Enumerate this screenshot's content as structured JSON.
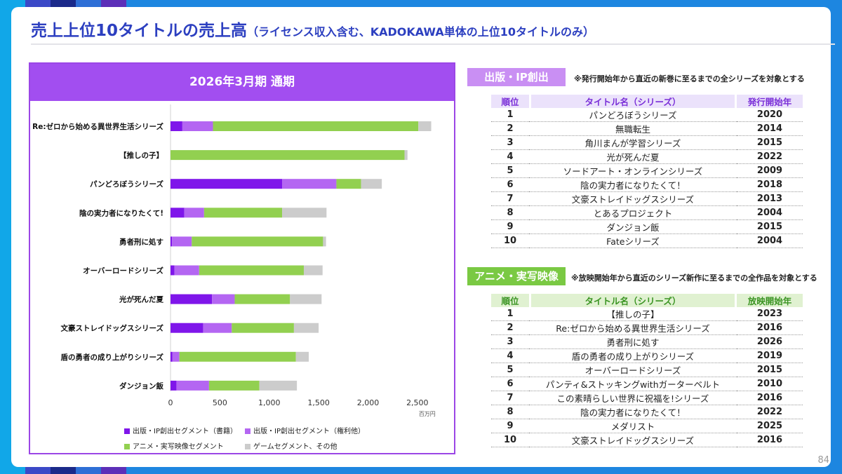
{
  "page": {
    "title_main": "売上上位10タイトルの売上高",
    "title_sub": "（ライセンス収入含む、KADOKAWA単体の上位10タイトルのみ）",
    "page_number": "84"
  },
  "chart_header": "2026年3月期 通期",
  "chart_data": {
    "type": "bar",
    "orientation": "horizontal",
    "stacked": true,
    "categories": [
      "Re:ゼロから始める異世界生活シリーズ",
      "【推しの子】",
      "パンどろぼうシリーズ",
      "陰の実力者になりたくて!",
      "勇者刑に処す",
      "オーバーロードシリーズ",
      "光が死んだ夏",
      "文豪ストレイドッグスシリーズ",
      "盾の勇者の成り上がりシリーズ",
      "ダンジョン飯"
    ],
    "series": [
      {
        "name": "出版・IP創出セグメント（書籍）",
        "color": "#7f16ea",
        "values": [
          120,
          0,
          1130,
          140,
          15,
          40,
          420,
          330,
          20,
          60
        ]
      },
      {
        "name": "出版・IP創出セグメント（権利他）",
        "color": "#b466f2",
        "values": [
          310,
          0,
          550,
          200,
          200,
          250,
          230,
          290,
          70,
          330
        ]
      },
      {
        "name": "アニメ・実写映像セグメント",
        "color": "#92d050",
        "values": [
          2080,
          2370,
          250,
          790,
          1330,
          1060,
          560,
          630,
          1180,
          510
        ]
      },
      {
        "name": "ゲームセグメント、その他",
        "color": "#cccccc",
        "values": [
          130,
          30,
          210,
          450,
          30,
          190,
          320,
          250,
          130,
          380
        ]
      }
    ],
    "xlim": [
      0,
      2750
    ],
    "xticks": [
      0,
      500,
      1000,
      1500,
      2000,
      2500
    ],
    "xtick_labels": [
      "0",
      "500",
      "1,000",
      "1,500",
      "2,000",
      "2,500"
    ],
    "unit": "百万円",
    "grid": false,
    "legend_position": "bottom"
  },
  "publishing": {
    "label": "出版・IP創出",
    "note": "※発行開始年から直近の新巻に至るまでの全シリーズを対象とする",
    "headers": [
      "順位",
      "タイトル名（シリーズ）",
      "発行開始年"
    ],
    "rows": [
      {
        "rank": "1",
        "title": "パンどろぼうシリーズ",
        "year": "2020"
      },
      {
        "rank": "2",
        "title": "無職転生",
        "year": "2014"
      },
      {
        "rank": "3",
        "title": "角川まんが学習シリーズ",
        "year": "2015"
      },
      {
        "rank": "4",
        "title": "光が死んだ夏",
        "year": "2022"
      },
      {
        "rank": "5",
        "title": "ソードアート・オンラインシリーズ",
        "year": "2009"
      },
      {
        "rank": "6",
        "title": "陰の実力者になりたくて！",
        "year": "2018"
      },
      {
        "rank": "7",
        "title": "文豪ストレイドッグスシリーズ",
        "year": "2013"
      },
      {
        "rank": "8",
        "title": "とあるプロジェクト",
        "year": "2004"
      },
      {
        "rank": "9",
        "title": "ダンジョン飯",
        "year": "2015"
      },
      {
        "rank": "10",
        "title": "Fateシリーズ",
        "year": "2004"
      }
    ]
  },
  "anime": {
    "label": "アニメ・実写映像",
    "note": "※放映開始年から直近のシリーズ新作に至るまでの全作品を対象とする",
    "headers": [
      "順位",
      "タイトル名（シリーズ）",
      "放映開始年"
    ],
    "rows": [
      {
        "rank": "1",
        "title": "【推しの子】",
        "year": "2023"
      },
      {
        "rank": "2",
        "title": "Re:ゼロから始める異世界生活シリーズ",
        "year": "2016"
      },
      {
        "rank": "3",
        "title": "勇者刑に処す",
        "year": "2026"
      },
      {
        "rank": "4",
        "title": "盾の勇者の成り上がりシリーズ",
        "year": "2019"
      },
      {
        "rank": "5",
        "title": "オーバーロードシリーズ",
        "year": "2015"
      },
      {
        "rank": "6",
        "title": "パンティ&ストッキングwithガーターベルト",
        "year": "2010"
      },
      {
        "rank": "7",
        "title": "この素晴らしい世界に祝福を!シリーズ",
        "year": "2016"
      },
      {
        "rank": "8",
        "title": "陰の実力者になりたくて！",
        "year": "2022"
      },
      {
        "rank": "9",
        "title": "メダリスト",
        "year": "2025"
      },
      {
        "rank": "10",
        "title": "文豪ストレイドッグスシリーズ",
        "year": "2016"
      }
    ]
  },
  "colors": {
    "title": "#2c3fc0",
    "publishing_accent": "#a24ef0",
    "anime_accent": "#7ac943"
  }
}
